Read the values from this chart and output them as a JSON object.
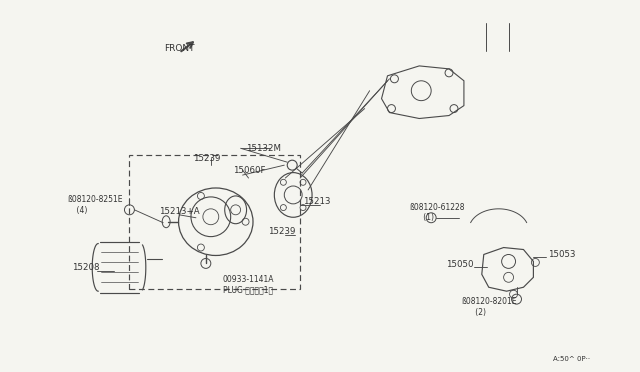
{
  "background_color": "#f5f5f0",
  "fig_width": 6.4,
  "fig_height": 3.72,
  "lc": "#4a4a4a",
  "tc": "#333333",
  "labels": {
    "front": "FRONT",
    "15132M": "15132M",
    "15239_top": "15239",
    "15060F": "15060F",
    "15213_right": "15213",
    "15213A": "15213+A",
    "15239_bot": "15239",
    "15208": "15208",
    "00933": "00933-1141A\nPLUG プラグ（1）",
    "08120_8251E": "ß08120-8251E\n    (4)",
    "08120_61228": "ß08120-61228\n      (1)",
    "15053": "15053",
    "15050": "15050",
    "08120_8201E": "ß08120-8201E\n      (2)",
    "scale": "A:50^ 0P··"
  }
}
